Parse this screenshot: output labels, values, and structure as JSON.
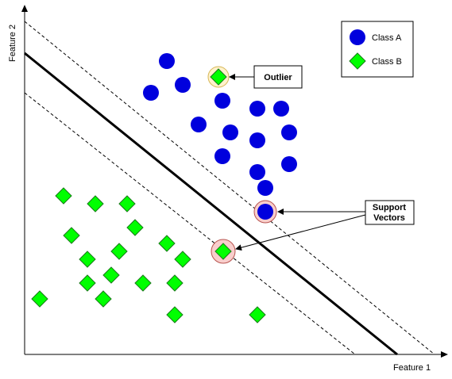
{
  "axes": {
    "x_label": "Feature 1",
    "y_label": "Feature 2"
  },
  "legend": {
    "class_a_label": "Class A",
    "class_b_label": "Class B"
  },
  "annotations": {
    "outlier_label": "Outlier",
    "support_vectors_line1": "Support",
    "support_vectors_line2": "Vectors"
  },
  "colors": {
    "class_a": "#0000dd",
    "class_b": "#00ff00",
    "outlier_highlight": "#fff2cc",
    "support_highlight": "#f8cecc"
  }
}
